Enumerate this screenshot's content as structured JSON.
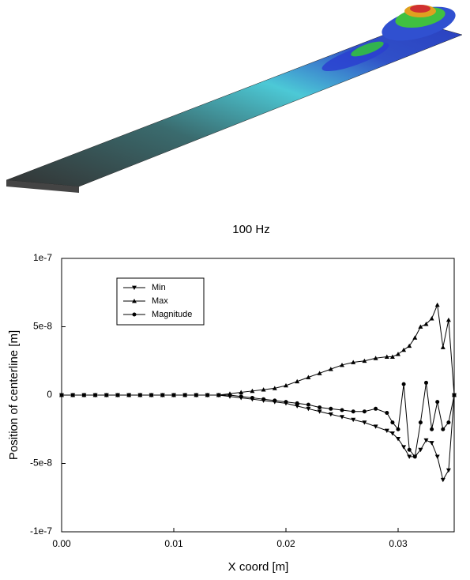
{
  "render_caption": "100 Hz",
  "chart_data": {
    "type": "line",
    "xlabel": "X coord [m]",
    "ylabel": "Position of centerline [m]",
    "xlim": [
      0,
      0.035
    ],
    "ylim": [
      -1e-07,
      1e-07
    ],
    "xticks": [
      {
        "value": 0,
        "label": "0.00"
      },
      0.01,
      0.02,
      0.03
    ],
    "yticks": [
      -1e-07,
      -5e-08,
      0,
      5e-08,
      1e-07
    ],
    "legend": "upper left",
    "grid": false,
    "x": [
      0,
      0.001,
      0.002,
      0.003,
      0.004,
      0.005,
      0.006,
      0.007,
      0.008,
      0.009,
      0.01,
      0.011,
      0.012,
      0.013,
      0.014,
      0.015,
      0.016,
      0.017,
      0.018,
      0.019,
      0.02,
      0.021,
      0.022,
      0.023,
      0.024,
      0.025,
      0.026,
      0.027,
      0.028,
      0.029,
      0.0295,
      0.03,
      0.0305,
      0.031,
      0.0315,
      0.032,
      0.0325,
      0.033,
      0.0335,
      0.034,
      0.0345,
      0.035
    ],
    "series": [
      {
        "name": "Min",
        "color": "#000000",
        "marker": "triangle-down",
        "values": [
          0,
          0,
          0,
          0,
          0,
          0,
          0,
          0,
          0,
          0,
          0,
          0,
          0,
          0,
          0,
          -1e-09,
          -2e-09,
          -3e-09,
          -4e-09,
          -5e-09,
          -6e-09,
          -8e-09,
          -1e-08,
          -1.2e-08,
          -1.4e-08,
          -1.6e-08,
          -1.8e-08,
          -2e-08,
          -2.3e-08,
          -2.6e-08,
          -2.8e-08,
          -3.2e-08,
          -3.8e-08,
          -4.5e-08,
          -4.5e-08,
          -4e-08,
          -3.3e-08,
          -3.5e-08,
          -4.5e-08,
          -6.2e-08,
          -5.5e-08,
          0
        ]
      },
      {
        "name": "Max",
        "color": "#000000",
        "marker": "triangle-up",
        "values": [
          0,
          0,
          0,
          0,
          0,
          0,
          0,
          0,
          0,
          0,
          0,
          0,
          0,
          0,
          0,
          1e-09,
          2e-09,
          3e-09,
          4e-09,
          5e-09,
          7e-09,
          1e-08,
          1.3e-08,
          1.6e-08,
          1.9e-08,
          2.2e-08,
          2.4e-08,
          2.5e-08,
          2.7e-08,
          2.8e-08,
          2.8e-08,
          3e-08,
          3.3e-08,
          3.6e-08,
          4.2e-08,
          5e-08,
          5.2e-08,
          5.6e-08,
          6.6e-08,
          3.5e-08,
          5.5e-08,
          0
        ]
      },
      {
        "name": "Magnitude",
        "color": "#000000",
        "marker": "circle",
        "values": [
          0,
          0,
          0,
          0,
          0,
          0,
          0,
          0,
          0,
          0,
          0,
          0,
          0,
          0,
          0,
          0,
          -1e-09,
          -2e-09,
          -3e-09,
          -4e-09,
          -5e-09,
          -6e-09,
          -7e-09,
          -9e-09,
          -1e-08,
          -1.1e-08,
          -1.2e-08,
          -1.2e-08,
          -1e-08,
          -1.3e-08,
          -2e-08,
          -2.5e-08,
          8e-09,
          -4e-08,
          -4.5e-08,
          -2e-08,
          9e-09,
          -2.5e-08,
          -5e-09,
          -2.5e-08,
          -2e-08,
          0
        ]
      }
    ]
  }
}
